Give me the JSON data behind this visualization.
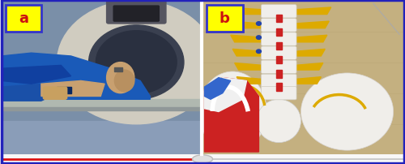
{
  "fig_width": 5.0,
  "fig_height": 2.03,
  "dpi": 100,
  "label_a_text": "a",
  "label_b_text": "b",
  "label_bg_color": "#FFFF00",
  "label_border_color": "#3333CC",
  "label_text_color": "#CC1111",
  "label_fontsize": 13,
  "label_fontweight": "bold",
  "outer_border_color": "#2222BB",
  "outer_border_lw": 2.5,
  "bottom_line_color": "#DD1111",
  "ct_wall_color": "#7a8fa8",
  "ct_body_color": "#d0ccc0",
  "ct_hole_color": "#3a4050",
  "ct_tunnel_color": "#505868",
  "patient_gown_color": "#1a5ab8",
  "patient_skin_color": "#c8a070",
  "table_color": "#909090",
  "spine_bg_color": "#c4b080",
  "vertebra_color": "#f0eeea",
  "disc_color": "#cc2222",
  "process_color": "#ddaa00",
  "pelvis_color": "#f0eeea",
  "muscle_red_color": "#cc2222",
  "muscle_blue_color": "#3366cc",
  "scroll_circle_color": "#dddddd",
  "white_divider_color": "#ffffff",
  "bottom_white_bar_color": "#eeeeee"
}
